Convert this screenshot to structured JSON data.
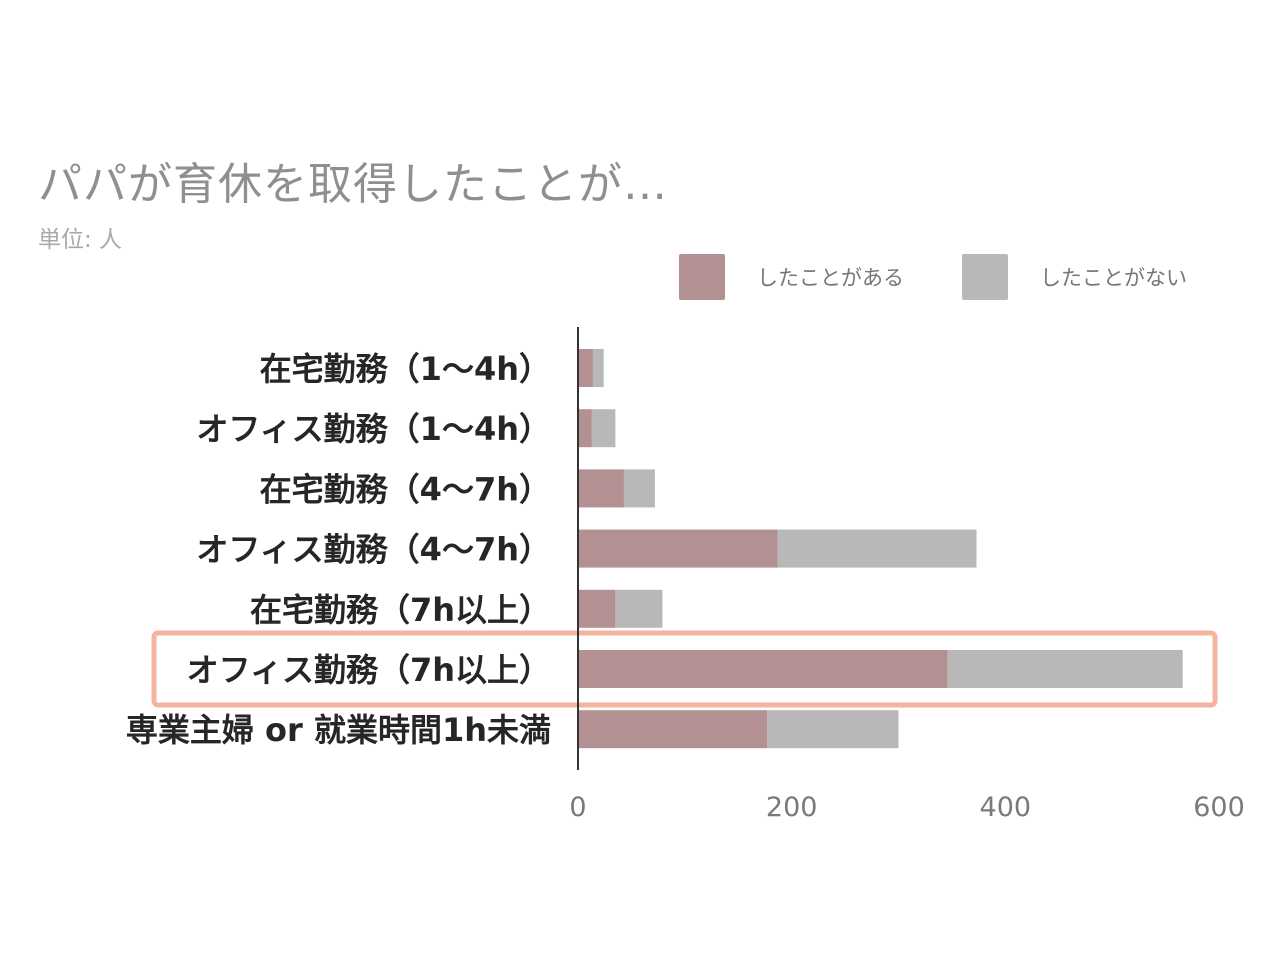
{
  "chart_data": {
    "type": "bar",
    "orientation": "horizontal",
    "stacked": true,
    "title": "パパが育休を取得したことが…",
    "subtitle": "単位: 人",
    "categories": [
      "在宅勤務（1～4h）",
      "オフィス勤務（1～4h）",
      "在宅勤務（4～7h）",
      "オフィス勤務（4～7h）",
      "在宅勤務（7h以上）",
      "オフィス勤務（7h以上）",
      "専業主婦 or 就業時間1h未満"
    ],
    "series": [
      {
        "name": "したことがある",
        "color": "#b39092",
        "values": [
          14,
          13,
          43,
          187,
          35,
          346,
          177
        ]
      },
      {
        "name": "したことがない",
        "color": "#b8b8b8",
        "values": [
          10,
          22,
          29,
          186,
          44,
          220,
          123
        ]
      }
    ],
    "xlim": [
      0,
      600
    ],
    "xticks": [
      0,
      200,
      400,
      600
    ],
    "legend_position": "top-right",
    "grid": false,
    "highlight": {
      "category_index": 5,
      "color": "#f4b4a0"
    }
  }
}
